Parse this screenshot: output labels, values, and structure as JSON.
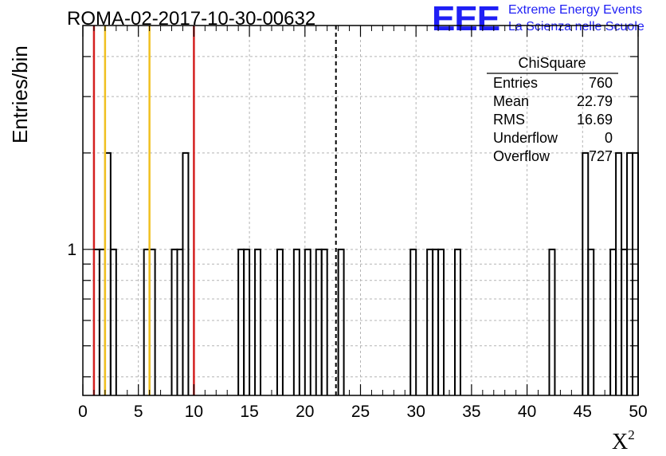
{
  "chart_data": {
    "type": "bar",
    "title": "ROMA-02-2017-10-30-00632",
    "xlabel": "X",
    "xlabel_superscript": "2",
    "ylabel": "Entries/bin",
    "xlim": [
      0,
      50
    ],
    "y_scale": "log",
    "ylim": [
      0.35,
      5
    ],
    "grid": true,
    "x_ticks": [
      "0",
      "5",
      "10",
      "15",
      "20",
      "25",
      "30",
      "35",
      "40",
      "45",
      "50"
    ],
    "y_tick_labels": [
      "1"
    ],
    "bin_width": 0.5,
    "bins": [
      {
        "x": 1.0,
        "y": 1
      },
      {
        "x": 1.5,
        "y": 1
      },
      {
        "x": 2.0,
        "y": 2
      },
      {
        "x": 2.5,
        "y": 1
      },
      {
        "x": 5.5,
        "y": 1
      },
      {
        "x": 6.0,
        "y": 1
      },
      {
        "x": 8.0,
        "y": 1
      },
      {
        "x": 8.5,
        "y": 1
      },
      {
        "x": 9.0,
        "y": 2
      },
      {
        "x": 14.0,
        "y": 1
      },
      {
        "x": 14.5,
        "y": 1
      },
      {
        "x": 15.5,
        "y": 1
      },
      {
        "x": 17.5,
        "y": 1
      },
      {
        "x": 19.0,
        "y": 1
      },
      {
        "x": 20.0,
        "y": 1
      },
      {
        "x": 21.0,
        "y": 1
      },
      {
        "x": 21.5,
        "y": 1
      },
      {
        "x": 23.0,
        "y": 1
      },
      {
        "x": 29.5,
        "y": 1
      },
      {
        "x": 31.0,
        "y": 1
      },
      {
        "x": 31.5,
        "y": 1
      },
      {
        "x": 32.0,
        "y": 1
      },
      {
        "x": 33.5,
        "y": 1
      },
      {
        "x": 42.0,
        "y": 1
      },
      {
        "x": 45.0,
        "y": 2
      },
      {
        "x": 45.5,
        "y": 1
      },
      {
        "x": 47.5,
        "y": 1
      },
      {
        "x": 48.0,
        "y": 2
      },
      {
        "x": 48.5,
        "y": 1
      },
      {
        "x": 49.0,
        "y": 2
      },
      {
        "x": 49.5,
        "y": 2
      }
    ],
    "reference_lines": [
      {
        "x": 1.0,
        "color": "#d42020",
        "style": "solid"
      },
      {
        "x": 2.0,
        "color": "#f0c020",
        "style": "solid"
      },
      {
        "x": 6.0,
        "color": "#f0c020",
        "style": "solid"
      },
      {
        "x": 10.0,
        "color": "#d42020",
        "style": "solid"
      },
      {
        "x": 22.79,
        "color": "#000000",
        "style": "dashed"
      }
    ],
    "stats_box": {
      "title": "ChiSquare",
      "rows": [
        {
          "label": "Entries",
          "value": "760"
        },
        {
          "label": "Mean",
          "value": "22.79"
        },
        {
          "label": "RMS",
          "value": "16.69"
        },
        {
          "label": "Underflow",
          "value": "0"
        },
        {
          "label": "Overflow",
          "value": "727"
        }
      ]
    }
  },
  "logo": {
    "mark": "EEE",
    "line1": "Extreme Energy Events",
    "line2": "La Scienza nelle Scuole",
    "color": "#1f1ff5"
  }
}
